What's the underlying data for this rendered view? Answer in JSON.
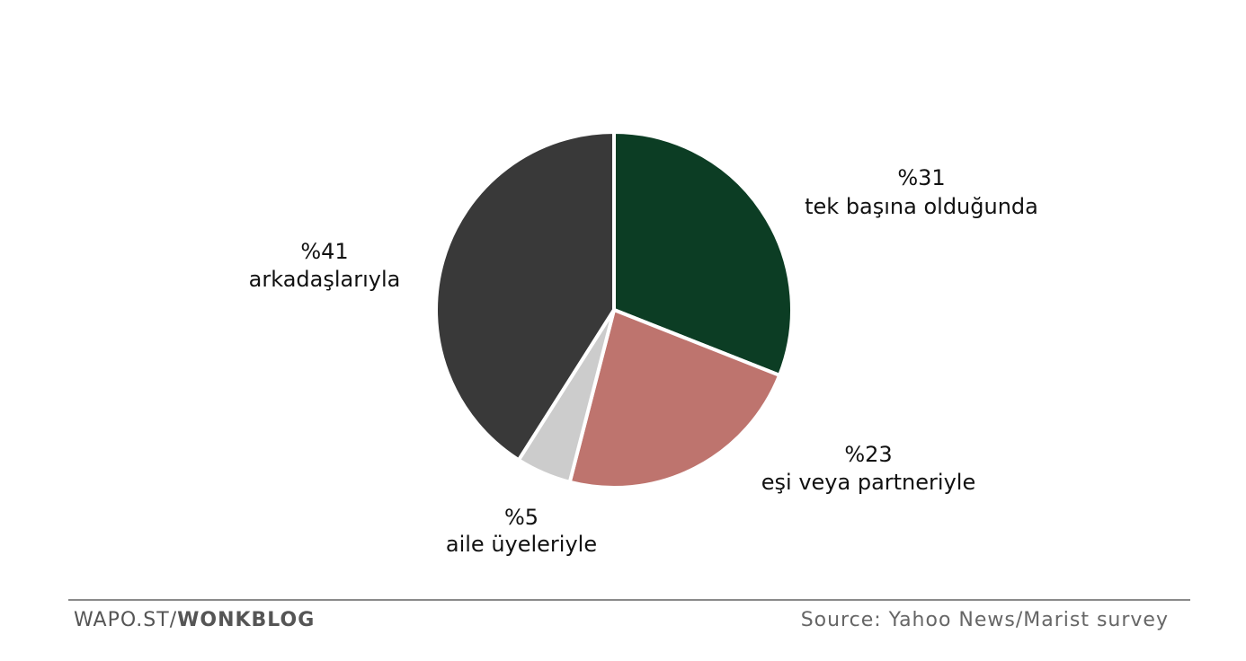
{
  "chart_data": {
    "type": "pie",
    "start_angle_deg": 0,
    "direction": "clockwise",
    "slices": [
      {
        "value_label": "%31",
        "label": "tek başına olduğunda",
        "value": 31,
        "color": "#0c3d24"
      },
      {
        "value_label": "%23",
        "label": "eşi veya partneriyle",
        "value": 23,
        "color": "#be746e"
      },
      {
        "value_label": "%5",
        "label": "aile üyeleriyle",
        "value": 5,
        "color": "#cccccc"
      },
      {
        "value_label": "%41",
        "label": "arkadaşlarıyla",
        "value": 41,
        "color": "#393939"
      }
    ]
  },
  "footer": {
    "left_prefix": "WAPO.ST/",
    "left_bold": "WONKBLOG",
    "source": "Source: Yahoo News/Marist survey"
  }
}
